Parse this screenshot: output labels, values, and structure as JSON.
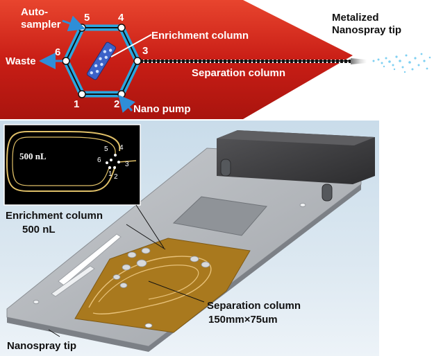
{
  "top": {
    "labels": {
      "auto_sampler_line1": "Auto-",
      "auto_sampler_line2": "sampler",
      "waste": "Waste",
      "enrichment_column": "Enrichment column",
      "separation_column": "Separation column",
      "nano_pump": "Nano pump",
      "tip_line1": "Metalized",
      "tip_line2": "Nanospray tip"
    },
    "port_numbers": [
      "1",
      "2",
      "3",
      "4",
      "5",
      "6"
    ],
    "colors": {
      "chip_red": "#d9261c",
      "valve_blue": "#2aa7e0",
      "arrow_blue": "#2f8ed8",
      "spray_blue": "#7fd0f2"
    }
  },
  "bottom": {
    "inset": {
      "volume_label": "500 nL",
      "port_numbers": [
        "1",
        "2",
        "3",
        "4",
        "5",
        "6"
      ]
    },
    "labels": {
      "enrichment_line1": "Enrichment column",
      "enrichment_line2": "500 nL",
      "separation_line1": "Separation column",
      "separation_line2": "150mm×75um",
      "nanospray_tip": "Nanospray tip"
    },
    "colors": {
      "background": "#ddeaf3",
      "chip_grey": "#b5b8bc",
      "channel_gold": "#a9791e",
      "housing_dark": "#3c3c3e"
    }
  }
}
